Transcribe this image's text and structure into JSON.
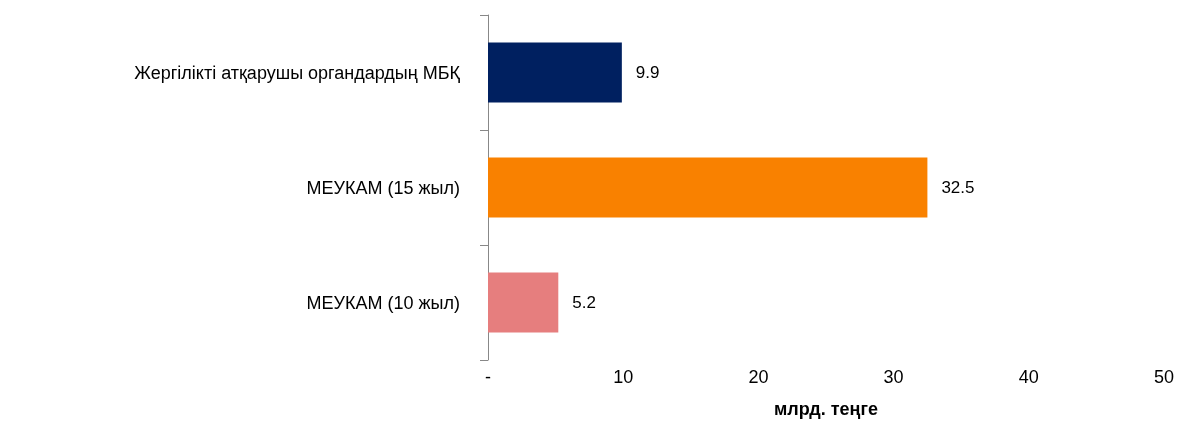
{
  "chart_data": {
    "type": "bar",
    "orientation": "horizontal",
    "xlabel": "млрд. теңге",
    "categories": [
      "Жергілікті атқарушы органдардың МБҚ",
      "МЕУКАМ (15 жыл)",
      "МЕУКАМ (10 жыл)"
    ],
    "values": [
      9.9,
      32.5,
      5.2
    ],
    "colors": [
      "#002060",
      "#f98100",
      "#e67e7e"
    ],
    "xlim": [
      0,
      50
    ],
    "xticks": [
      {
        "value": 0,
        "label": "-"
      },
      10,
      20,
      30,
      40,
      50
    ],
    "data_labels": true,
    "grid": false
  }
}
